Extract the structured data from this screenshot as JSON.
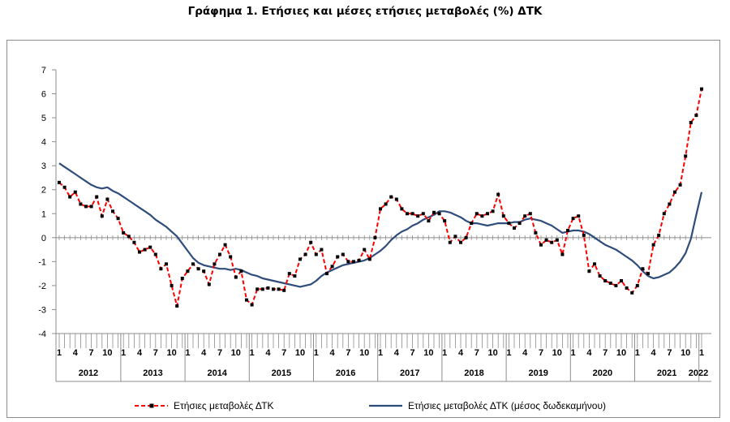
{
  "title": "Γράφημα 1. Ετήσιες και μέσες ετήσιες μεταβολές (%) ΔΤΚ",
  "chart_data": {
    "type": "line",
    "title": "Γράφημα 1. Ετήσιες και μέσες ετήσιες μεταβολές (%) ΔΤΚ",
    "xlabel": "",
    "ylabel": "",
    "ylim": [
      -4,
      7
    ],
    "yticks": [
      "-4",
      "-3",
      "-2",
      "-1",
      "0",
      "1",
      "2",
      "3",
      "4",
      "5",
      "6",
      "7"
    ],
    "month_tick_labels": [
      "1",
      "4",
      "7",
      "10"
    ],
    "years": [
      "2012",
      "2013",
      "2014",
      "2015",
      "2016",
      "2017",
      "2018",
      "2019",
      "2020",
      "2021",
      "2022"
    ],
    "x_start": "2012-01",
    "x_end": "2022-01",
    "grid": false,
    "legend_position": "bottom",
    "series": [
      {
        "name": "Ετήσιες μεταβολές ΔΤΚ",
        "color": "#ff0000",
        "marker_color": "#000000",
        "style": "dashed-with-markers",
        "values": [
          2.3,
          2.1,
          1.7,
          1.9,
          1.4,
          1.3,
          1.3,
          1.7,
          0.9,
          1.6,
          1.1,
          0.8,
          0.2,
          0.05,
          -0.2,
          -0.6,
          -0.5,
          -0.4,
          -0.7,
          -1.3,
          -1.1,
          -2.0,
          -2.85,
          -1.7,
          -1.4,
          -1.1,
          -1.3,
          -1.4,
          -1.95,
          -1.1,
          -0.7,
          -0.3,
          -0.8,
          -1.65,
          -1.4,
          -2.6,
          -2.8,
          -2.15,
          -2.15,
          -2.1,
          -2.15,
          -2.15,
          -2.2,
          -1.5,
          -1.6,
          -0.9,
          -0.7,
          -0.2,
          -0.7,
          -0.5,
          -1.5,
          -1.2,
          -0.8,
          -0.7,
          -1.0,
          -1.0,
          -0.95,
          -0.5,
          -0.9,
          0.0,
          1.2,
          1.4,
          1.7,
          1.6,
          1.2,
          1.0,
          1.0,
          0.9,
          1.0,
          0.7,
          1.05,
          1.0,
          0.7,
          -0.2,
          0.05,
          -0.2,
          0.0,
          0.6,
          1.0,
          0.9,
          1.0,
          1.1,
          1.8,
          0.9,
          0.6,
          0.4,
          0.6,
          0.9,
          1.0,
          0.2,
          -0.3,
          -0.1,
          -0.2,
          -0.1,
          -0.7,
          0.3,
          0.8,
          0.9,
          0.1,
          -1.4,
          -1.1,
          -1.6,
          -1.8,
          -1.9,
          -2.0,
          -1.8,
          -2.1,
          -2.3,
          -2.0,
          -1.3,
          -1.5,
          -0.3,
          0.1,
          1.0,
          1.4,
          1.9,
          2.2,
          3.4,
          4.8,
          5.1,
          6.2
        ]
      },
      {
        "name": "Ετήσιες μεταβολές ΔΤΚ (μέσος δωδεκαμήνου)",
        "color": "#2e4d7b",
        "style": "solid",
        "values": [
          3.1,
          2.95,
          2.8,
          2.65,
          2.5,
          2.35,
          2.2,
          2.1,
          2.05,
          2.1,
          1.95,
          1.85,
          1.7,
          1.55,
          1.4,
          1.25,
          1.1,
          0.95,
          0.75,
          0.6,
          0.45,
          0.25,
          0.05,
          -0.25,
          -0.55,
          -0.85,
          -1.05,
          -1.15,
          -1.2,
          -1.25,
          -1.3,
          -1.3,
          -1.35,
          -1.3,
          -1.35,
          -1.45,
          -1.55,
          -1.6,
          -1.7,
          -1.75,
          -1.8,
          -1.85,
          -1.9,
          -1.95,
          -2.0,
          -2.05,
          -2.0,
          -1.95,
          -1.8,
          -1.6,
          -1.45,
          -1.35,
          -1.25,
          -1.15,
          -1.1,
          -1.05,
          -1.0,
          -0.95,
          -0.85,
          -0.7,
          -0.55,
          -0.35,
          -0.1,
          0.1,
          0.25,
          0.35,
          0.5,
          0.6,
          0.75,
          0.85,
          0.95,
          1.1,
          1.1,
          1.05,
          0.95,
          0.85,
          0.7,
          0.6,
          0.6,
          0.55,
          0.5,
          0.55,
          0.6,
          0.6,
          0.6,
          0.65,
          0.65,
          0.75,
          0.8,
          0.75,
          0.7,
          0.6,
          0.5,
          0.35,
          0.2,
          0.25,
          0.3,
          0.3,
          0.25,
          0.15,
          0.0,
          -0.15,
          -0.3,
          -0.4,
          -0.5,
          -0.65,
          -0.8,
          -0.95,
          -1.15,
          -1.4,
          -1.6,
          -1.7,
          -1.65,
          -1.55,
          -1.45,
          -1.25,
          -1.0,
          -0.65,
          -0.05,
          0.95,
          1.9
        ]
      }
    ]
  }
}
